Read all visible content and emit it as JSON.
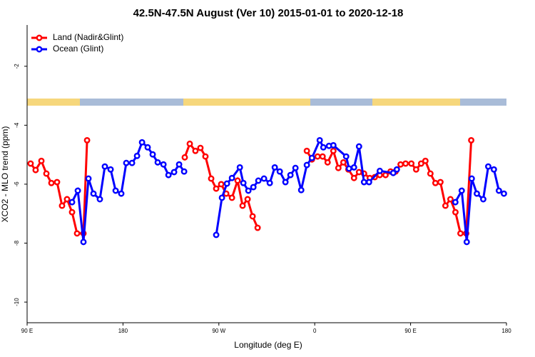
{
  "chart_data": {
    "type": "line",
    "title": "42.5N-47.5N August (Ver 10)   2015-01-01 to 2020-12-18",
    "x_label": "Longitude (deg E)",
    "y_label": "XCO2 - MLO trend (ppm)",
    "xlim": [
      90,
      540
    ],
    "ylim": [
      -10.7,
      -0.6
    ],
    "xticks": [
      {
        "value": 90,
        "label": "90 E"
      },
      180,
      {
        "value": 270,
        "label": "90 W"
      },
      {
        "value": 360,
        "label": "0"
      },
      {
        "value": 450,
        "label": "90 E"
      },
      180.0001
    ],
    "yticks": [
      -10,
      -8,
      -6,
      -4,
      -2
    ],
    "legend": "top-left",
    "series": [
      {
        "name": "Land (Nadir&Glint)",
        "color": "#ff0000",
        "x": [
          93.3,
          98.0,
          103.4,
          108.1,
          112.8,
          118.1,
          122.8,
          127.5,
          132.2,
          136.9,
          142.9,
          146.3,
          200,
          238.0,
          242.7,
          248.0,
          252.7,
          257.4,
          262.8,
          267.5,
          272.2,
          276.9,
          282.3,
          287.6,
          292.3,
          297.0,
          301.7,
          306.4,
          330,
          352.6,
          357.4,
          362.7,
          367.4,
          372.1,
          377.5,
          382.2,
          386.9,
          391.6,
          396.9,
          401.6,
          406.3,
          411.7,
          416.4,
          421.1,
          426.5,
          431.2,
          435.9,
          440.6,
          445.3,
          450.7,
          455.2,
          459.9,
          463.9,
          468.6,
          473.3,
          478.0,
          482.7,
          487.4,
          492.1,
          496.8,
          502.2,
          506.9
        ],
        "values": [
          -5.3,
          -5.52,
          -5.21,
          -5.64,
          -5.96,
          -5.93,
          -6.73,
          -6.51,
          -6.95,
          -7.67,
          -7.67,
          -4.51,
          null,
          -5.09,
          -4.63,
          -4.87,
          -4.77,
          -5.06,
          -5.81,
          -6.15,
          -6.0,
          -6.32,
          -6.46,
          -5.88,
          -6.73,
          -6.51,
          -7.09,
          -7.48,
          null,
          -4.87,
          -5.16,
          -5.06,
          -5.06,
          -5.26,
          -4.87,
          -5.45,
          -5.26,
          -5.5,
          -5.79,
          -5.59,
          -5.64,
          -5.79,
          -5.76,
          -5.69,
          -5.69,
          -5.57,
          -5.57,
          -5.33,
          -5.3,
          -5.3,
          -5.5,
          -5.3,
          -5.21,
          -5.64,
          -5.96,
          -5.93,
          -6.73,
          -6.51,
          -6.95,
          -7.67,
          -7.67,
          -4.51
        ]
      },
      {
        "name": "Ocean (Glint)",
        "color": "#0000ff",
        "x": [
          132.2,
          137.6,
          142.9,
          147.6,
          152.3,
          158.3,
          163.0,
          168.4,
          173.1,
          178.4,
          183.1,
          188.5,
          193.2,
          197.9,
          203.2,
          207.9,
          212.6,
          218.0,
          222.7,
          228.0,
          232.7,
          237.4,
          250,
          267.5,
          272.9,
          277.6,
          282.3,
          289.7,
          293.0,
          297.7,
          302.4,
          307.1,
          312.4,
          317.8,
          322.5,
          327.2,
          332.5,
          337.2,
          341.9,
          347.3,
          352.6,
          357.4,
          364.7,
          368.1,
          373.4,
          377.5,
          389.5,
          392.2,
          396.9,
          401.6,
          406.3,
          411.0,
          421.1,
          433.7,
          437.1,
          470,
          492.0,
          498.0,
          502.7,
          507.4,
          512.2,
          518.2,
          522.9,
          528.2,
          532.9,
          537.6
        ],
        "values": [
          -6.61,
          -6.22,
          -7.96,
          -5.81,
          -6.32,
          -6.51,
          -5.4,
          -5.5,
          -6.22,
          -6.32,
          -5.28,
          -5.28,
          -5.04,
          -4.58,
          -4.75,
          -4.99,
          -5.26,
          -5.33,
          -5.69,
          -5.59,
          -5.33,
          -5.57,
          null,
          -7.72,
          -6.46,
          -5.98,
          -5.79,
          -5.43,
          -5.96,
          -6.22,
          -6.1,
          -5.88,
          -5.81,
          -5.96,
          -5.43,
          -5.57,
          -5.93,
          -5.69,
          -5.45,
          -6.2,
          -5.35,
          -5.11,
          -4.51,
          -4.75,
          -4.7,
          -4.68,
          -5.06,
          -5.47,
          -5.43,
          -4.72,
          -5.93,
          -5.93,
          -5.55,
          -5.62,
          -5.5,
          null,
          -6.61,
          -6.22,
          -7.96,
          -5.81,
          -6.32,
          -6.51,
          -5.4,
          -5.5,
          -6.22,
          -6.32
        ]
      }
    ]
  }
}
